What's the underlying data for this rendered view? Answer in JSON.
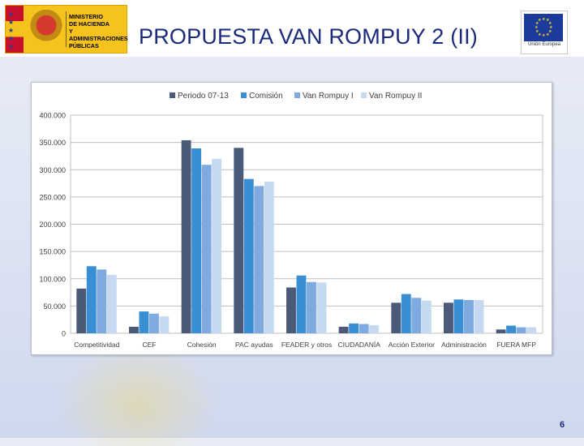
{
  "slide": {
    "title": "PROPUESTA VAN ROMPUY 2 (II)",
    "page_number": "6"
  },
  "ministry_logo": {
    "lines": [
      "MINISTERIO",
      "DE HACIENDA",
      "Y ADMINISTRACIONES",
      "PÚBLICAS"
    ]
  },
  "eu_logo": {
    "caption": "Unión Europea"
  },
  "colors": {
    "series": [
      "#4a5a78",
      "#3a8fd4",
      "#7faae0",
      "#c5d9f1"
    ],
    "title": "#1b2a7a",
    "grid": "#bfbfbf"
  },
  "chart_data": {
    "type": "bar",
    "categories": [
      "Competitividad",
      "CEF",
      "Cohesión",
      "PAC ayudas",
      "FEADER y otros",
      "CIUDADANÍA",
      "Acción Exterior",
      "Administración",
      "FUERA MFP"
    ],
    "series": [
      {
        "name": "Periodo 07-13",
        "values": [
          82,
          12,
          354,
          340,
          84,
          12,
          56,
          56,
          7
        ]
      },
      {
        "name": "Comisión",
        "values": [
          123,
          40,
          339,
          283,
          106,
          18,
          72,
          62,
          14
        ]
      },
      {
        "name": "Van Rompuy I",
        "values": [
          117,
          36,
          309,
          270,
          94,
          17,
          65,
          61,
          11
        ]
      },
      {
        "name": "Van Rompuy II",
        "values": [
          107,
          31,
          320,
          278,
          93,
          15,
          60,
          61,
          11
        ]
      }
    ],
    "ylim": [
      0,
      400
    ],
    "yticks": [
      "0",
      "50.000",
      "100.000",
      "150.000",
      "200.000",
      "250.000",
      "300.000",
      "350.000",
      "400.000"
    ],
    "grid": true,
    "legend_position": "top"
  }
}
